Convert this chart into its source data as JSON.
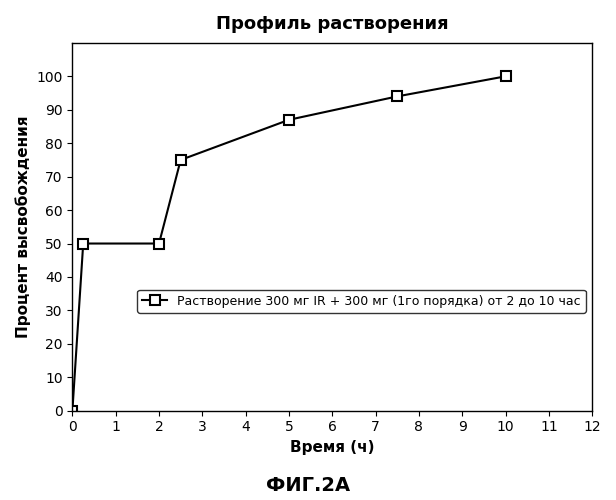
{
  "title": "Профиль растворения",
  "xlabel": "Время (ч)",
  "ylabel": "Процент высвобождения",
  "figure_label": "ФИГ.2А",
  "legend_label": "Растворение 300 мг IR + 300 мг (1го порядка) от 2 до 10 час",
  "x": [
    0.0,
    0.25,
    2.0,
    2.5,
    5.0,
    7.5,
    10.0
  ],
  "y": [
    0,
    50,
    50,
    75,
    87,
    94,
    100
  ],
  "xlim": [
    0,
    12
  ],
  "ylim": [
    0,
    110
  ],
  "xticks": [
    0,
    1,
    2,
    3,
    4,
    5,
    6,
    7,
    8,
    9,
    10,
    11,
    12
  ],
  "yticks": [
    0,
    10,
    20,
    30,
    40,
    50,
    60,
    70,
    80,
    90,
    100
  ],
  "line_color": "#000000",
  "marker": "s",
  "marker_facecolor": "#ffffff",
  "marker_edgecolor": "#000000",
  "marker_size": 7,
  "background_color": "#ffffff",
  "title_fontsize": 13,
  "label_fontsize": 11,
  "tick_fontsize": 10,
  "legend_fontsize": 9,
  "figure_label_fontsize": 14
}
